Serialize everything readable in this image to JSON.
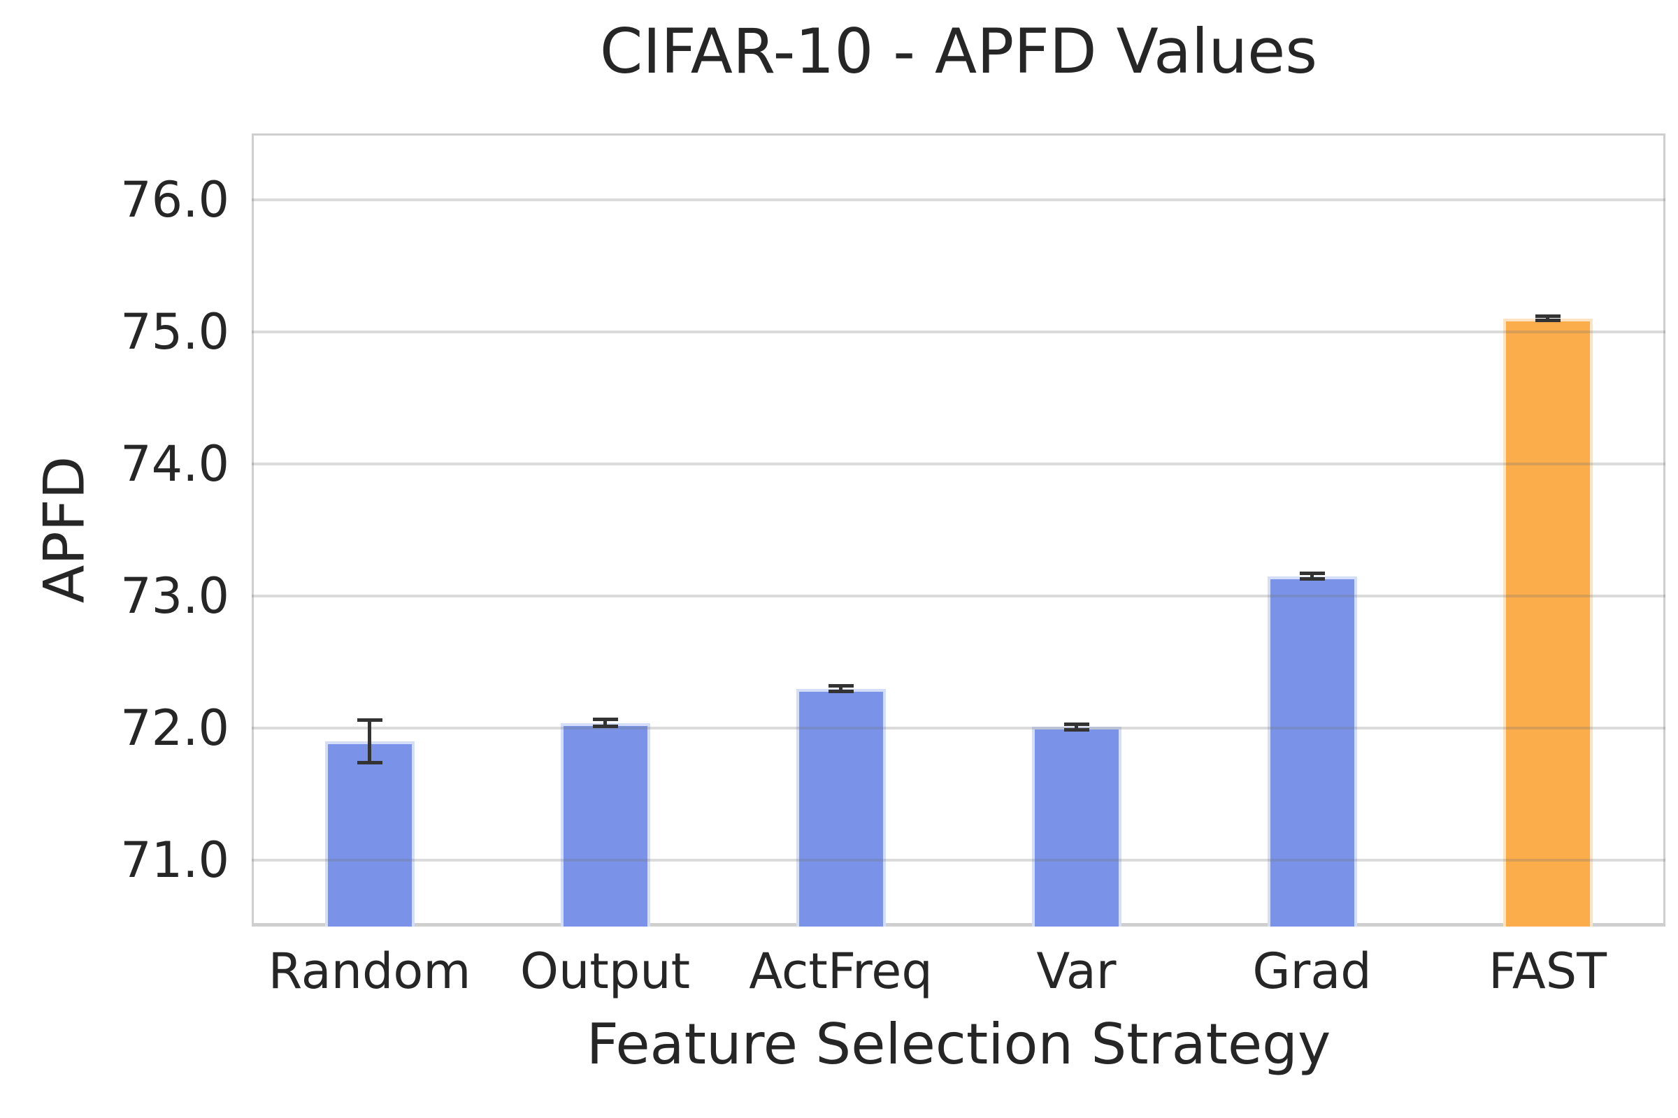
{
  "title": "CIFAR-10 - APFD Values",
  "chart_data": {
    "type": "bar",
    "title": "CIFAR-10 - APFD Values",
    "xlabel": "Feature Selection Strategy",
    "ylabel": "APFD",
    "categories": [
      "Random",
      "Output",
      "ActFreq",
      "Var",
      "Grad",
      "FAST"
    ],
    "series": [
      {
        "name": "APFD",
        "values": [
          71.9,
          72.04,
          72.3,
          72.01,
          73.15,
          75.1
        ],
        "errors": [
          0.16,
          0.025,
          0.02,
          0.02,
          0.02,
          0.015
        ]
      }
    ],
    "ylim": [
      70.5,
      76.5
    ],
    "yticks": [
      71.0,
      72.0,
      73.0,
      74.0,
      75.0,
      76.0
    ],
    "ytick_labels": [
      "71.0",
      "72.0",
      "73.0",
      "74.0",
      "75.0",
      "76.0"
    ],
    "grid": "horizontal-only",
    "legend_position": "none",
    "highlighted_category": "FAST",
    "bar_colors": [
      "#7A93E8",
      "#7A93E8",
      "#7A93E8",
      "#7A93E8",
      "#7A93E8",
      "#FBAD4B"
    ],
    "bar_edge_colors": [
      "#D4DEF8",
      "#D4DEF8",
      "#D4DEF8",
      "#D4DEF8",
      "#D4DEF8",
      "#FCE3C3"
    ],
    "error_bar_color": "#333333",
    "gridline_color": "rgba(110,110,110,0.25)",
    "spine_color": "#cfcfcf",
    "text_color": "#262626",
    "background_color": "#ffffff"
  }
}
